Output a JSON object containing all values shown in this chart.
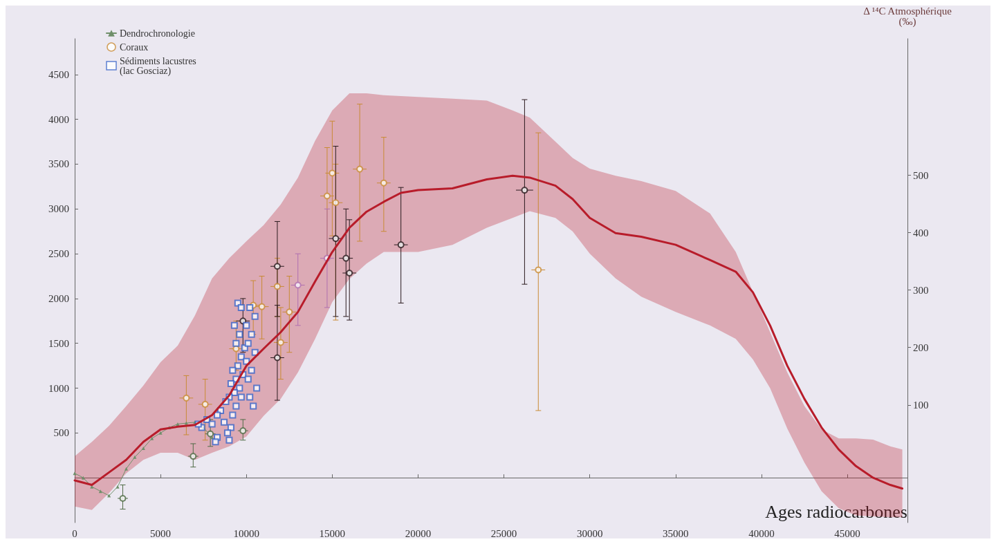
{
  "chart_data": {
    "type": "scatter",
    "xlabel": "Ages radiocarbones",
    "y2label": "Δ ¹⁴C Atmosphérique\n(‰)",
    "xlim": [
      0,
      48500
    ],
    "xticks": [
      0,
      5000,
      10000,
      15000,
      20000,
      25000,
      30000,
      35000,
      40000,
      45000
    ],
    "ylim": [
      -500,
      4900
    ],
    "yticks": [
      500,
      1000,
      1500,
      2000,
      2500,
      3000,
      3500,
      4000,
      4500
    ],
    "y2lim": [
      -105,
      738
    ],
    "y2ticks": [
      100,
      200,
      300,
      400,
      500
    ],
    "grid": false,
    "legend": "top left",
    "series": [
      {
        "type": "line",
        "color": "#b81c2a",
        "line_style": "solid",
        "marker": "none",
        "x": [
          0,
          1000,
          2000,
          3000,
          4000,
          5000,
          6000,
          7000,
          8000,
          9000,
          10000,
          11000,
          12000,
          13000,
          14000,
          15000,
          16000,
          17000,
          18000,
          19000,
          20000,
          22000,
          24000,
          25500,
          26500,
          28000,
          29000,
          30000,
          31500,
          33000,
          35000,
          37000,
          38500,
          39500,
          40500,
          41500,
          42500,
          43500,
          44500,
          45500,
          46500,
          47500,
          48200
        ],
        "values": [
          -30,
          -80,
          60,
          200,
          400,
          540,
          570,
          590,
          700,
          920,
          1250,
          1440,
          1625,
          1850,
          2190,
          2520,
          2790,
          2970,
          3080,
          3180,
          3210,
          3230,
          3330,
          3370,
          3350,
          3260,
          3110,
          2900,
          2730,
          2690,
          2600,
          2430,
          2300,
          2070,
          1700,
          1250,
          880,
          560,
          315,
          130,
          0,
          -80,
          -120
        ],
        "upper": [
          240,
          400,
          580,
          800,
          1030,
          1290,
          1475,
          1810,
          2225,
          2450,
          2640,
          2820,
          3050,
          3350,
          3760,
          4100,
          4290,
          4290,
          4270,
          4260,
          4250,
          4230,
          4210,
          4100,
          4020,
          3750,
          3570,
          3450,
          3370,
          3310,
          3200,
          2950,
          2520,
          2075,
          1625,
          1175,
          800,
          540,
          440,
          440,
          425,
          350,
          315
        ],
        "lower": [
          -320,
          -360,
          -170,
          50,
          200,
          280,
          280,
          200,
          280,
          350,
          460,
          690,
          880,
          1175,
          1550,
          1960,
          2220,
          2390,
          2520,
          2520,
          2520,
          2600,
          2790,
          2900,
          2975,
          2900,
          2750,
          2500,
          2225,
          2020,
          1850,
          1700,
          1550,
          1320,
          1000,
          550,
          170,
          -150,
          -340,
          -420,
          -430,
          -440,
          -440
        ]
      },
      {
        "type": "line",
        "name": "Dendrochronologie",
        "color": "#6f8f6a",
        "marker": "triangle",
        "line_style": "solid",
        "x": [
          0,
          500,
          1000,
          1500,
          2000,
          2500,
          3000,
          3500,
          4000,
          4500,
          5000,
          5500,
          6000,
          6500,
          7000,
          7500,
          8000
        ],
        "values": [
          50,
          0,
          -100,
          -150,
          -200,
          -100,
          100,
          230,
          330,
          440,
          500,
          560,
          600,
          610,
          620,
          560,
          450
        ]
      },
      {
        "name": "Coraux",
        "color": "#c98b35",
        "marker": "circle",
        "x": [
          6500,
          7600,
          10400,
          10900,
          12500,
          11800,
          12000,
          9400,
          14700,
          15000,
          15200,
          16600,
          18000,
          27000,
          11800,
          11800,
          15200,
          15800,
          16000,
          19000,
          26200,
          9800,
          13000,
          14700,
          2800,
          6900,
          9800,
          7900
        ],
        "values": [
          890,
          820,
          1925,
          1910,
          1850,
          2135,
          1510,
          1440,
          3145,
          3400,
          3070,
          3445,
          3290,
          2320,
          2360,
          1340,
          2670,
          2450,
          2285,
          2600,
          3210,
          1750,
          2150,
          2450,
          -230,
          240,
          525,
          490
        ],
        "errors": [
          [
            480,
            1140
          ],
          [
            420,
            1100
          ],
          [
            1600,
            2200
          ],
          [
            1550,
            2250
          ],
          [
            1400,
            2250
          ],
          [
            1800,
            2450
          ],
          [
            1100,
            1900
          ],
          [
            1200,
            1750
          ],
          [
            2470,
            3685
          ],
          [
            2700,
            3980
          ],
          [
            1760,
            3500
          ],
          [
            2640,
            4170
          ],
          [
            2750,
            3800
          ],
          [
            750,
            3850
          ],
          [
            1800,
            2860
          ],
          [
            865,
            1925
          ],
          [
            1800,
            3700
          ],
          [
            1800,
            3000
          ],
          [
            1760,
            2880
          ],
          [
            1950,
            3240
          ],
          [
            2160,
            4220
          ],
          [
            1400,
            2000
          ],
          [
            1700,
            2500
          ],
          [
            1900,
            3000
          ],
          [
            -350,
            -80
          ],
          [
            120,
            380
          ],
          [
            420,
            650
          ],
          [
            350,
            650
          ]
        ],
        "xerrors": [
          400,
          400,
          400,
          400,
          400,
          400,
          400,
          400,
          400,
          400,
          400,
          400,
          400,
          400,
          400,
          400,
          400,
          400,
          400,
          400,
          500,
          400,
          400,
          400,
          300,
          300,
          300,
          300
        ],
        "colors": [
          "#c98b35",
          "#c98b35",
          "#c98b35",
          "#c98b35",
          "#c98b35",
          "#c98b35",
          "#c98b35",
          "#c98b35",
          "#c98b35",
          "#c98b35",
          "#c98b35",
          "#c98b35",
          "#c98b35",
          "#c98b35",
          "#2a1a1e",
          "#2a1a1e",
          "#2a1a1e",
          "#2a1a1e",
          "#2a1a1e",
          "#2a1a1e",
          "#2a1a1e",
          "#2a1a1e",
          "#b06fb0",
          "#b06fb0",
          "#4f6b45",
          "#4f6b45",
          "#4f6b45",
          "#4f6b45"
        ]
      },
      {
        "name": "Sédiments lacustres\n(lac Gosciaz)",
        "color": "#3a64c8",
        "marker": "square",
        "x": [
          9500,
          9700,
          9300,
          9600,
          9400,
          9900,
          9700,
          9500,
          9200,
          9800,
          9400,
          9100,
          9600,
          9300,
          9000,
          9700,
          8800,
          9400,
          8500,
          9200,
          8300,
          7700,
          8000,
          7400,
          8700,
          9100,
          8900,
          8300,
          9000,
          8200,
          10200,
          10500,
          10000,
          10300,
          10100,
          10500,
          10000,
          10300,
          10100,
          10600,
          10200,
          10400,
          7200
        ],
        "values": [
          1950,
          1900,
          1700,
          1600,
          1500,
          1450,
          1350,
          1250,
          1200,
          1150,
          1100,
          1050,
          1000,
          950,
          900,
          900,
          850,
          800,
          750,
          700,
          700,
          650,
          600,
          560,
          620,
          560,
          500,
          450,
          420,
          400,
          1900,
          1800,
          1700,
          1600,
          1500,
          1400,
          1300,
          1200,
          1100,
          1000,
          900,
          800,
          600
        ]
      }
    ]
  }
}
